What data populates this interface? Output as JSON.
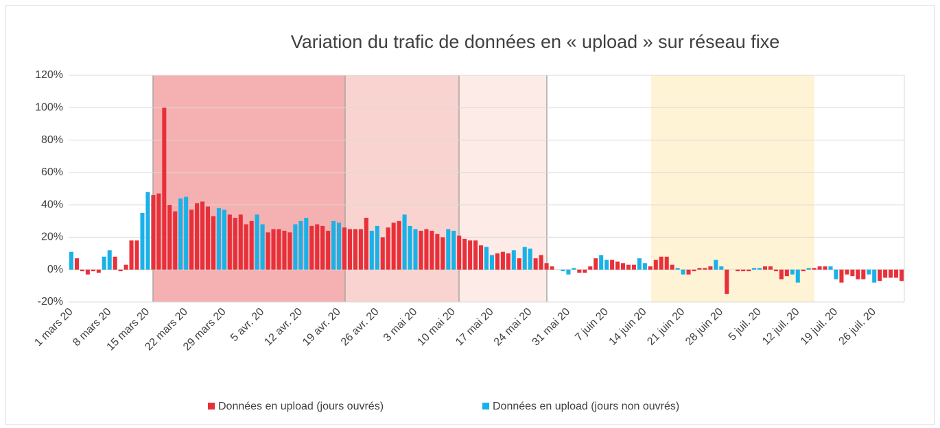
{
  "chart_data": {
    "type": "bar",
    "title": "Variation du trafic de données en « upload »  sur réseau fixe",
    "categories": [
      "1 mars 20",
      null,
      null,
      null,
      null,
      null,
      null,
      "8 mars 20",
      null,
      null,
      null,
      null,
      null,
      null,
      "15 mars 20",
      null,
      null,
      null,
      null,
      null,
      null,
      "22 mars 20",
      null,
      null,
      null,
      null,
      null,
      null,
      "29 mars 20",
      null,
      null,
      null,
      null,
      null,
      null,
      "5 avr. 20",
      null,
      null,
      null,
      null,
      null,
      null,
      "12 avr. 20",
      null,
      null,
      null,
      null,
      null,
      null,
      "19 avr. 20",
      null,
      null,
      null,
      null,
      null,
      null,
      "26 avr. 20",
      null,
      null,
      null,
      null,
      null,
      null,
      "3 mai 20",
      null,
      null,
      null,
      null,
      null,
      null,
      "10 mai 20",
      null,
      null,
      null,
      null,
      null,
      null,
      "17 mai 20",
      null,
      null,
      null,
      null,
      null,
      null,
      "24 mai 20",
      null,
      null,
      null,
      null,
      null,
      null,
      "31 mai 20",
      null,
      null,
      null,
      null,
      null,
      null,
      "7 juin 20",
      null,
      null,
      null,
      null,
      null,
      null,
      "14 juin 20",
      null,
      null,
      null,
      null,
      null,
      null,
      "21 juin 20",
      null,
      null,
      null,
      null,
      null,
      null,
      "28 juin 20",
      null,
      null,
      null,
      null,
      null,
      null,
      "5 juil. 20",
      null,
      null,
      null,
      null,
      null,
      null,
      "12 juil. 20",
      null,
      null,
      null,
      null,
      null,
      null,
      "19 juil. 20",
      null,
      null,
      null,
      null,
      null,
      null,
      "26 juil. 20",
      null,
      null,
      null,
      null,
      null
    ],
    "series": [
      {
        "name": "Données en upload (jours ouvrés)",
        "color": "#e8303a",
        "values": [
          null,
          7,
          -1,
          -3,
          -1,
          -2,
          null,
          null,
          8,
          -1,
          3,
          18,
          18,
          null,
          null,
          46,
          47,
          100,
          40,
          36,
          null,
          null,
          37,
          41,
          42,
          39,
          33,
          null,
          null,
          34,
          32,
          34,
          28,
          30,
          null,
          null,
          23,
          25,
          25,
          24,
          23,
          null,
          null,
          null,
          27,
          28,
          27,
          24,
          null,
          null,
          26,
          25,
          25,
          25,
          32,
          null,
          null,
          20,
          26,
          29,
          30,
          null,
          null,
          null,
          24,
          25,
          24,
          22,
          20,
          null,
          null,
          21,
          19,
          18,
          18,
          15,
          null,
          null,
          10,
          11,
          10,
          null,
          7,
          null,
          null,
          7,
          9,
          4,
          2,
          0,
          null,
          null,
          null,
          -2,
          -2,
          2,
          7,
          null,
          null,
          6,
          5,
          4,
          3,
          3,
          null,
          null,
          2,
          6,
          8,
          8,
          3,
          null,
          null,
          -3,
          -1,
          1,
          1,
          2,
          null,
          null,
          -15,
          0,
          -1,
          -1,
          -1,
          null,
          null,
          2,
          2,
          -1,
          -6,
          -4,
          null,
          null,
          -1,
          null,
          1,
          2,
          2,
          null,
          null,
          -8,
          -3,
          -4,
          -6,
          -6,
          null,
          null,
          -7,
          -5,
          -5,
          -5,
          -7
        ]
      },
      {
        "name": "Données en upload (jours non ouvrés)",
        "color": "#19b2e8",
        "values": [
          11,
          null,
          null,
          null,
          null,
          null,
          8,
          12,
          null,
          null,
          null,
          null,
          null,
          35,
          48,
          null,
          null,
          null,
          null,
          null,
          44,
          45,
          null,
          null,
          null,
          null,
          null,
          38,
          37,
          null,
          null,
          null,
          null,
          null,
          34,
          28,
          null,
          null,
          null,
          null,
          null,
          28,
          30,
          32,
          null,
          null,
          null,
          null,
          30,
          29,
          null,
          null,
          null,
          null,
          null,
          24,
          27,
          null,
          null,
          null,
          null,
          34,
          27,
          25,
          null,
          null,
          null,
          null,
          null,
          25,
          24,
          null,
          null,
          null,
          null,
          null,
          14,
          9,
          null,
          null,
          null,
          12,
          null,
          14,
          13,
          null,
          null,
          null,
          null,
          null,
          -1,
          -3,
          1,
          null,
          null,
          null,
          null,
          9,
          6,
          null,
          null,
          null,
          null,
          null,
          7,
          4,
          null,
          null,
          null,
          null,
          null,
          1,
          -3,
          null,
          null,
          null,
          null,
          null,
          6,
          2,
          null,
          null,
          null,
          null,
          null,
          1,
          1,
          null,
          null,
          null,
          null,
          null,
          -3,
          -8,
          null,
          1,
          null,
          null,
          null,
          2,
          -6,
          null,
          null,
          null,
          null,
          null,
          -3,
          -8,
          null,
          null,
          null,
          null,
          null
        ]
      }
    ],
    "ylim": [
      -20,
      120
    ],
    "yticks": [
      {
        "value": -20,
        "label": "-20%"
      },
      {
        "value": 0,
        "label": "0%"
      },
      {
        "value": 20,
        "label": "20%"
      },
      {
        "value": 40,
        "label": "40%"
      },
      {
        "value": 60,
        "label": "60%"
      },
      {
        "value": 80,
        "label": "80%"
      },
      {
        "value": 100,
        "label": "100%"
      },
      {
        "value": 120,
        "label": "120%"
      }
    ],
    "grid": true,
    "legend": "bottom"
  }
}
